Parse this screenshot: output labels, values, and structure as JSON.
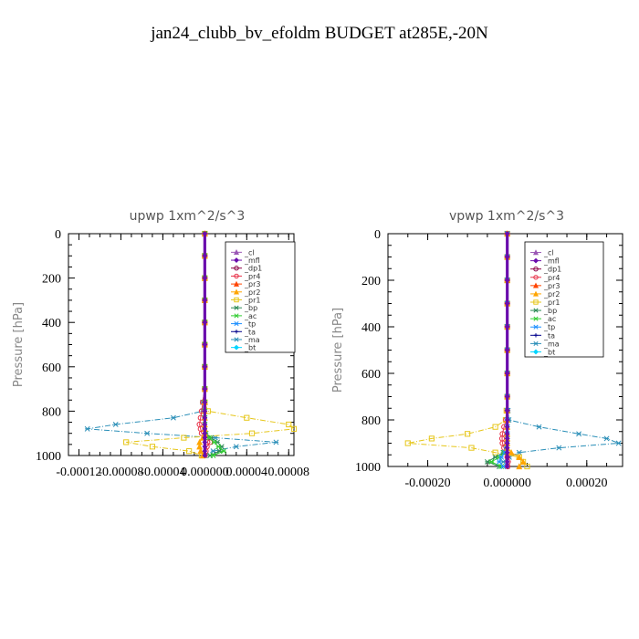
{
  "figure": {
    "title": "jan24_clubb_bv_efoldm  BUDGET at285E,-20N"
  },
  "colors": {
    "_cl": "#9b59b6",
    "_mfl": "#6a0dad",
    "_dp1": "#8b0045",
    "_pr4": "#e8334a",
    "_pr3": "#ff4500",
    "_pr2": "#ffa500",
    "_pr1": "#e6c619",
    "_bp": "#2e8b57",
    "_ac": "#32cd32",
    "_tp": "#1e90ff",
    "_ta": "#00008b",
    "_ma": "#2b8fb8",
    "_bt": "#00d5ff"
  },
  "chart_data": [
    {
      "type": "line",
      "title": "upwp   1xm^2/s^3",
      "ylabel": "Pressure [hPa]",
      "xlabel": "",
      "xlim": [
        -0.00013,
        8.5e-05
      ],
      "ylim": [
        1000,
        0
      ],
      "xticks": [
        -0.00012,
        -8e-05,
        -4e-05,
        0.0,
        4e-05,
        8e-05
      ],
      "xtick_labels": [
        "-0.00012",
        "-0.00008",
        "-0.00004",
        "0.000000",
        "0.00004",
        "0.00008"
      ],
      "yticks": [
        0,
        200,
        400,
        600,
        800,
        1000
      ],
      "ytick_labels": [
        "0",
        "200",
        "400",
        "600",
        "800",
        "1000"
      ],
      "legend": {
        "position": "top-right",
        "entries": [
          "_cl",
          "_mfl",
          "_dp1",
          "_pr4",
          "_pr3",
          "_pr2",
          "_pr1",
          "_bp",
          "_ac",
          "_tp",
          "_ta",
          "_ma",
          "_bt"
        ]
      },
      "y": [
        0,
        100,
        200,
        300,
        400,
        500,
        600,
        700,
        760,
        800,
        830,
        860,
        880,
        900,
        920,
        940,
        960,
        980,
        1000
      ],
      "series": [
        {
          "name": "_ma",
          "values": [
            0,
            0,
            0,
            0,
            0,
            0,
            0,
            0,
            -2e-06,
            -2e-06,
            -3e-05,
            -8.5e-05,
            -0.000112,
            -5.5e-05,
            1e-05,
            6.8e-05,
            3e-05,
            8e-06,
            0.0
          ]
        },
        {
          "name": "_pr1",
          "values": [
            0,
            0,
            0,
            0,
            0,
            0,
            0,
            0,
            0,
            3e-06,
            4e-05,
            8e-05,
            8.5e-05,
            4.5e-05,
            -2e-05,
            -7.5e-05,
            -5e-05,
            -1.5e-05,
            -3e-06
          ]
        },
        {
          "name": "_pr4",
          "values": [
            0,
            0,
            0,
            0,
            0,
            0,
            0,
            0,
            -2e-06,
            -3e-06,
            -4e-06,
            -5e-06,
            -4e-06,
            -3e-06,
            3e-06,
            5e-06,
            2e-06,
            1e-06,
            0.0
          ]
        },
        {
          "name": "_bp",
          "values": [
            0,
            0,
            0,
            0,
            0,
            0,
            0,
            0,
            0,
            0,
            0,
            0,
            0,
            1e-06,
            6e-06,
            1.2e-05,
            1.6e-05,
            1.4e-05,
            5e-06
          ]
        },
        {
          "name": "_ac",
          "values": [
            0,
            0,
            0,
            0,
            0,
            0,
            0,
            0,
            0,
            0,
            0,
            0,
            0,
            1e-06,
            4e-06,
            9e-06,
            1.3e-05,
            1.8e-05,
            8e-06
          ]
        },
        {
          "name": "_pr2",
          "values": [
            0,
            0,
            0,
            0,
            0,
            0,
            0,
            0,
            0,
            0,
            0,
            0,
            0,
            0,
            -2e-06,
            -5e-06,
            -5e-06,
            -4e-06,
            -2e-06
          ]
        },
        {
          "name": "_mfl",
          "values": [
            0,
            0,
            0,
            0,
            0,
            0,
            0,
            0,
            0,
            0,
            0,
            0,
            0,
            0,
            0,
            0,
            0,
            0,
            0
          ]
        }
      ]
    },
    {
      "type": "line",
      "title": "vpwp   1xm^2/s^3",
      "ylabel": "Pressure [hPa]",
      "xlabel": "",
      "xlim": [
        -0.0003,
        0.00029
      ],
      "ylim": [
        1000,
        0
      ],
      "xticks": [
        -0.0002,
        0.0,
        0.0002
      ],
      "xtick_labels": [
        "-0.00020",
        "0.000000",
        "0.00020"
      ],
      "yticks": [
        0,
        200,
        400,
        600,
        800,
        1000
      ],
      "ytick_labels": [
        "0",
        "200",
        "400",
        "600",
        "800",
        "1000"
      ],
      "legend": {
        "position": "top-right",
        "entries": [
          "_cl",
          "_mfl",
          "_dp1",
          "_pr4",
          "_pr3",
          "_pr2",
          "_pr1",
          "_bp",
          "_ac",
          "_tp",
          "_ta",
          "_ma",
          "_bt"
        ]
      },
      "y": [
        0,
        100,
        200,
        300,
        400,
        500,
        600,
        700,
        760,
        800,
        830,
        860,
        880,
        900,
        920,
        940,
        960,
        980,
        1000
      ],
      "series": [
        {
          "name": "_ma",
          "values": [
            0,
            0,
            0,
            0,
            0,
            0,
            0,
            0,
            2e-06,
            4e-06,
            8e-05,
            0.00018,
            0.00025,
            0.00028,
            0.00013,
            3e-05,
            5e-06,
            -1e-05,
            0.0
          ]
        },
        {
          "name": "_pr1",
          "values": [
            0,
            0,
            0,
            0,
            0,
            0,
            0,
            0,
            -2e-06,
            -4e-06,
            -3e-05,
            -0.0001,
            -0.00019,
            -0.00025,
            -9e-05,
            -3e-05,
            3e-05,
            4e-05,
            5e-05
          ]
        },
        {
          "name": "_pr4",
          "values": [
            0,
            0,
            0,
            0,
            0,
            0,
            0,
            0,
            0,
            -3e-06,
            -8e-06,
            -1.2e-05,
            -1.3e-05,
            -1.2e-05,
            -8e-06,
            -4e-06,
            0.0,
            2e-06,
            1e-06
          ]
        },
        {
          "name": "_bp",
          "values": [
            0,
            0,
            0,
            0,
            0,
            0,
            0,
            0,
            0,
            0,
            0,
            0,
            0,
            0,
            -2e-06,
            -1e-05,
            -3e-05,
            -5e-05,
            -2e-05
          ]
        },
        {
          "name": "_ac",
          "values": [
            0,
            0,
            0,
            0,
            0,
            0,
            0,
            0,
            0,
            0,
            0,
            0,
            0,
            0,
            -2e-06,
            -8e-06,
            -2e-05,
            -4e-05,
            -1.5e-05
          ]
        },
        {
          "name": "_tp",
          "values": [
            0,
            0,
            0,
            0,
            0,
            0,
            0,
            0,
            0,
            0,
            0,
            0,
            0,
            0,
            -2e-06,
            -6e-06,
            -1.5e-05,
            -2e-05,
            -1e-05
          ]
        },
        {
          "name": "_pr2",
          "values": [
            0,
            0,
            0,
            0,
            0,
            0,
            0,
            0,
            0,
            0,
            0,
            0,
            0,
            0,
            0,
            1e-05,
            3e-05,
            4e-05,
            3e-05
          ]
        },
        {
          "name": "_mfl",
          "values": [
            0,
            0,
            0,
            0,
            0,
            0,
            0,
            0,
            0,
            0,
            0,
            0,
            0,
            0,
            0,
            0,
            0,
            0,
            0
          ]
        }
      ]
    }
  ]
}
